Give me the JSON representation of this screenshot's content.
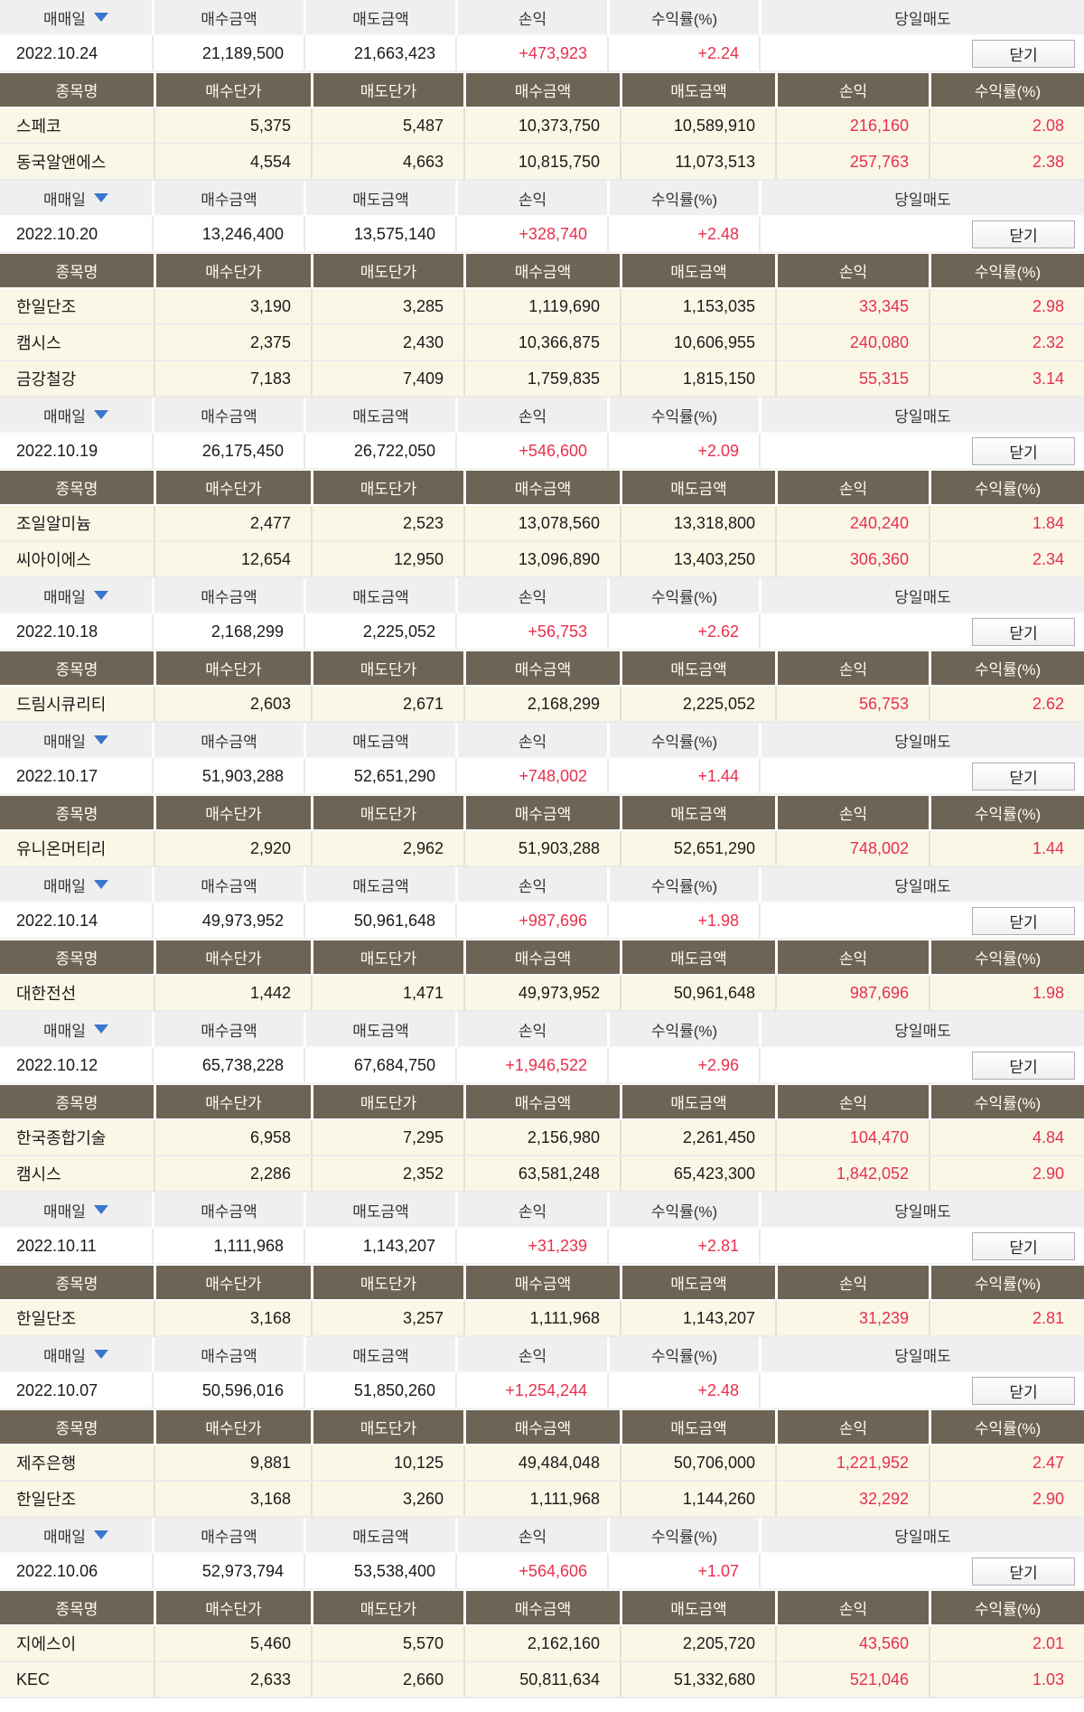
{
  "columns": {
    "group_header": [
      "매매일",
      "매수금액",
      "매도금액",
      "손익",
      "수익률(%)",
      "당일매도"
    ],
    "stock_header": [
      "종목명",
      "매수단가",
      "매도단가",
      "매수금액",
      "매도금액",
      "손익",
      "수익률(%)"
    ]
  },
  "close_button_label": "닫기",
  "icons": {
    "sort_icon": "triangle-down"
  },
  "colors": {
    "accent_red": "#e8304d",
    "header_bg": "#efefef",
    "subheader_bg": "#6e6455",
    "row_bg": "#faf7e6",
    "arrow_blue": "#3a76cf"
  },
  "groups": [
    {
      "date": "2022.10.24",
      "buy": "21,189,500",
      "sell": "21,663,423",
      "pl": "+473,923",
      "rate": "+2.24",
      "stocks": [
        {
          "name": "스페코",
          "buy_price": "5,375",
          "sell_price": "5,487",
          "buy_amt": "10,373,750",
          "sell_amt": "10,589,910",
          "pl": "216,160",
          "rate": "2.08"
        },
        {
          "name": "동국알앤에스",
          "buy_price": "4,554",
          "sell_price": "4,663",
          "buy_amt": "10,815,750",
          "sell_amt": "11,073,513",
          "pl": "257,763",
          "rate": "2.38"
        }
      ]
    },
    {
      "date": "2022.10.20",
      "buy": "13,246,400",
      "sell": "13,575,140",
      "pl": "+328,740",
      "rate": "+2.48",
      "stocks": [
        {
          "name": "한일단조",
          "buy_price": "3,190",
          "sell_price": "3,285",
          "buy_amt": "1,119,690",
          "sell_amt": "1,153,035",
          "pl": "33,345",
          "rate": "2.98"
        },
        {
          "name": "캠시스",
          "buy_price": "2,375",
          "sell_price": "2,430",
          "buy_amt": "10,366,875",
          "sell_amt": "10,606,955",
          "pl": "240,080",
          "rate": "2.32"
        },
        {
          "name": "금강철강",
          "buy_price": "7,183",
          "sell_price": "7,409",
          "buy_amt": "1,759,835",
          "sell_amt": "1,815,150",
          "pl": "55,315",
          "rate": "3.14"
        }
      ]
    },
    {
      "date": "2022.10.19",
      "buy": "26,175,450",
      "sell": "26,722,050",
      "pl": "+546,600",
      "rate": "+2.09",
      "stocks": [
        {
          "name": "조일알미늄",
          "buy_price": "2,477",
          "sell_price": "2,523",
          "buy_amt": "13,078,560",
          "sell_amt": "13,318,800",
          "pl": "240,240",
          "rate": "1.84"
        },
        {
          "name": "씨아이에스",
          "buy_price": "12,654",
          "sell_price": "12,950",
          "buy_amt": "13,096,890",
          "sell_amt": "13,403,250",
          "pl": "306,360",
          "rate": "2.34"
        }
      ]
    },
    {
      "date": "2022.10.18",
      "buy": "2,168,299",
      "sell": "2,225,052",
      "pl": "+56,753",
      "rate": "+2.62",
      "stocks": [
        {
          "name": "드림시큐리티",
          "buy_price": "2,603",
          "sell_price": "2,671",
          "buy_amt": "2,168,299",
          "sell_amt": "2,225,052",
          "pl": "56,753",
          "rate": "2.62"
        }
      ]
    },
    {
      "date": "2022.10.17",
      "buy": "51,903,288",
      "sell": "52,651,290",
      "pl": "+748,002",
      "rate": "+1.44",
      "stocks": [
        {
          "name": "유니온머티리",
          "buy_price": "2,920",
          "sell_price": "2,962",
          "buy_amt": "51,903,288",
          "sell_amt": "52,651,290",
          "pl": "748,002",
          "rate": "1.44"
        }
      ]
    },
    {
      "date": "2022.10.14",
      "buy": "49,973,952",
      "sell": "50,961,648",
      "pl": "+987,696",
      "rate": "+1.98",
      "stocks": [
        {
          "name": "대한전선",
          "buy_price": "1,442",
          "sell_price": "1,471",
          "buy_amt": "49,973,952",
          "sell_amt": "50,961,648",
          "pl": "987,696",
          "rate": "1.98"
        }
      ]
    },
    {
      "date": "2022.10.12",
      "buy": "65,738,228",
      "sell": "67,684,750",
      "pl": "+1,946,522",
      "rate": "+2.96",
      "stocks": [
        {
          "name": "한국종합기술",
          "buy_price": "6,958",
          "sell_price": "7,295",
          "buy_amt": "2,156,980",
          "sell_amt": "2,261,450",
          "pl": "104,470",
          "rate": "4.84"
        },
        {
          "name": "캠시스",
          "buy_price": "2,286",
          "sell_price": "2,352",
          "buy_amt": "63,581,248",
          "sell_amt": "65,423,300",
          "pl": "1,842,052",
          "rate": "2.90"
        }
      ]
    },
    {
      "date": "2022.10.11",
      "buy": "1,111,968",
      "sell": "1,143,207",
      "pl": "+31,239",
      "rate": "+2.81",
      "stocks": [
        {
          "name": "한일단조",
          "buy_price": "3,168",
          "sell_price": "3,257",
          "buy_amt": "1,111,968",
          "sell_amt": "1,143,207",
          "pl": "31,239",
          "rate": "2.81"
        }
      ]
    },
    {
      "date": "2022.10.07",
      "buy": "50,596,016",
      "sell": "51,850,260",
      "pl": "+1,254,244",
      "rate": "+2.48",
      "stocks": [
        {
          "name": "제주은행",
          "buy_price": "9,881",
          "sell_price": "10,125",
          "buy_amt": "49,484,048",
          "sell_amt": "50,706,000",
          "pl": "1,221,952",
          "rate": "2.47"
        },
        {
          "name": "한일단조",
          "buy_price": "3,168",
          "sell_price": "3,260",
          "buy_amt": "1,111,968",
          "sell_amt": "1,144,260",
          "pl": "32,292",
          "rate": "2.90"
        }
      ]
    },
    {
      "date": "2022.10.06",
      "buy": "52,973,794",
      "sell": "53,538,400",
      "pl": "+564,606",
      "rate": "+1.07",
      "stocks": [
        {
          "name": "지에스이",
          "buy_price": "5,460",
          "sell_price": "5,570",
          "buy_amt": "2,162,160",
          "sell_amt": "2,205,720",
          "pl": "43,560",
          "rate": "2.01"
        },
        {
          "name": "KEC",
          "buy_price": "2,633",
          "sell_price": "2,660",
          "buy_amt": "50,811,634",
          "sell_amt": "51,332,680",
          "pl": "521,046",
          "rate": "1.03"
        }
      ]
    }
  ]
}
